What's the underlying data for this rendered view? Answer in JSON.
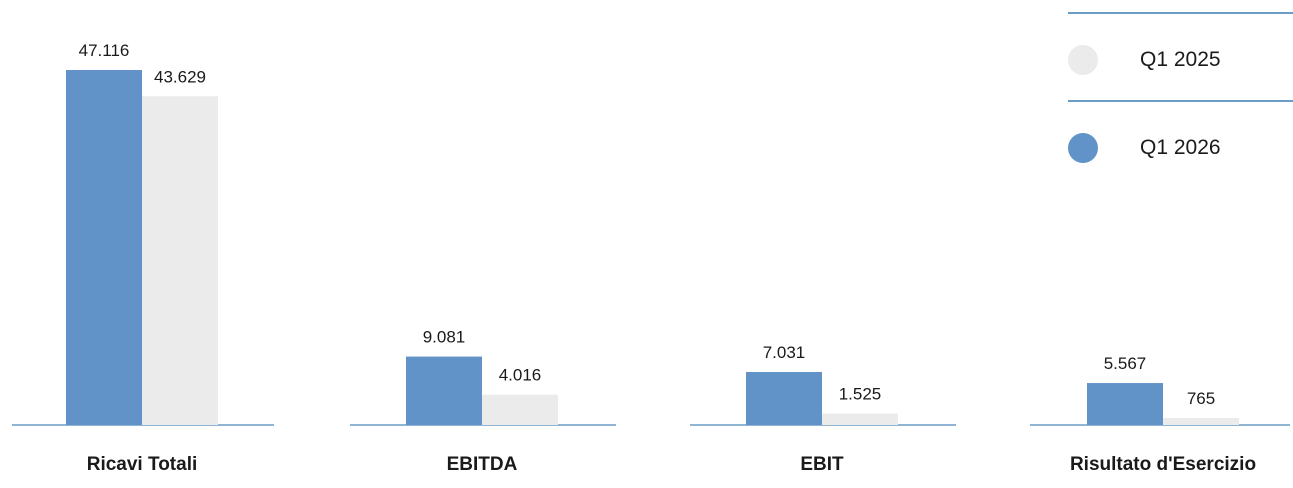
{
  "chart_data": {
    "type": "bar",
    "categories": [
      "Ricavi Totali",
      "EBITDA",
      "EBIT",
      "Risultato d'Esercizio"
    ],
    "series": [
      {
        "name": "Q1 2026",
        "color": "#6193c8",
        "values": [
          47116,
          9081,
          7031,
          5567
        ],
        "labels": [
          "47.116",
          "9.081",
          "7.031",
          "5.567"
        ]
      },
      {
        "name": "Q1 2025",
        "color": "#ebebeb",
        "values": [
          43629,
          4016,
          1525,
          765
        ],
        "labels": [
          "43.629",
          "4.016",
          "1.525",
          "765"
        ]
      }
    ],
    "legend": {
      "position": "top-right",
      "items": [
        {
          "label": "Q1 2025",
          "color": "#ebebeb"
        },
        {
          "label": "Q1 2026",
          "color": "#6193c8"
        }
      ]
    },
    "axis_color": "#6a9cc5",
    "grid": false,
    "title": "",
    "xlabel": "",
    "ylabel": ""
  }
}
